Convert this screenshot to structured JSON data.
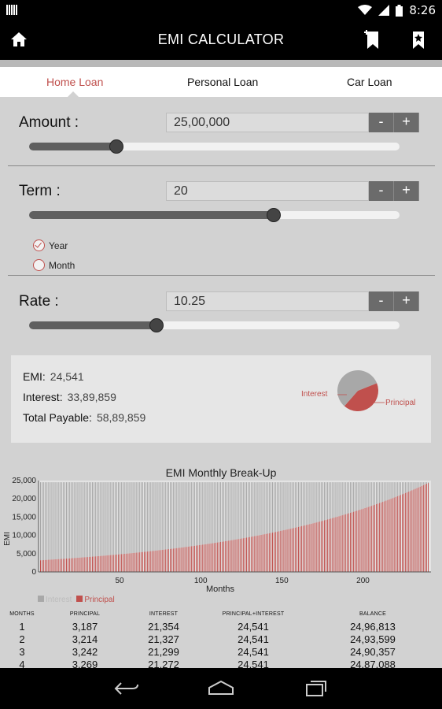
{
  "status": {
    "time": "8:26",
    "left_icon": "sim-icon",
    "icons": [
      "wifi-icon",
      "signal-icon",
      "battery-icon"
    ]
  },
  "appbar": {
    "title": "EMI CALCULATOR",
    "home_icon": "home-icon",
    "bookmark_add_icon": "bookmark-add-icon",
    "bookmark_icon": "bookmark-star-icon"
  },
  "tabs": [
    {
      "label": "Home Loan",
      "active": true
    },
    {
      "label": "Personal Loan",
      "active": false
    },
    {
      "label": "Car Loan",
      "active": false
    }
  ],
  "amount": {
    "label": "Amount :",
    "value": "25,00,000",
    "minus": "-",
    "plus": "+",
    "slider_fraction": 0.235
  },
  "term": {
    "label": "Term :",
    "value": "20",
    "minus": "-",
    "plus": "+",
    "slider_fraction": 0.66,
    "options": [
      {
        "label": "Year",
        "checked": true
      },
      {
        "label": "Month",
        "checked": false
      }
    ]
  },
  "rate": {
    "label": "Rate :",
    "value": "10.25",
    "minus": "-",
    "plus": "+",
    "slider_fraction": 0.345
  },
  "summary": {
    "emi_label": "EMI:",
    "emi_value": "24,541",
    "interest_label": "Interest:",
    "interest_value": "33,89,859",
    "total_label": "Total Payable:",
    "total_value": "58,89,859",
    "pie": {
      "labels": [
        "Interest",
        "Principal"
      ],
      "values": [
        3389859,
        2500000
      ],
      "colors": [
        "#a8a8a8",
        "#c0504d"
      ]
    }
  },
  "colors": {
    "accent": "#c0504d",
    "interest": "#a8a8a8",
    "principal": "#c0504d"
  },
  "chart_data": {
    "type": "bar",
    "title": "EMI Monthly Break-Up",
    "xlabel": "Months",
    "ylabel": "EMI",
    "x_range": [
      1,
      240
    ],
    "ylim": [
      0,
      25000
    ],
    "yticks": [
      "0",
      "5,000",
      "10,000",
      "15,000",
      "20,000",
      "25,000"
    ],
    "xticks": [
      "50",
      "100",
      "150",
      "200"
    ],
    "xtick_values": [
      50,
      100,
      150,
      200
    ],
    "ytick_values": [
      0,
      5000,
      10000,
      15000,
      20000,
      25000
    ],
    "stacked": true,
    "emi": 24541,
    "series": [
      {
        "name": "Interest",
        "color": "#a8a8a8"
      },
      {
        "name": "Principal",
        "color": "#c0504d",
        "start": 3187,
        "end": 24331
      }
    ],
    "legend": "bottom-left",
    "grid": false
  },
  "table": {
    "headers": [
      "MONTHS",
      "PRINCIPAL",
      "INTEREST",
      "PRINCIPAL+INTEREST",
      "BALANCE"
    ],
    "rows": [
      [
        "1",
        "3,187",
        "21,354",
        "24,541",
        "24,96,813"
      ],
      [
        "2",
        "3,214",
        "21,327",
        "24,541",
        "24,93,599"
      ],
      [
        "3",
        "3,242",
        "21,299",
        "24,541",
        "24,90,357"
      ],
      [
        "4",
        "3,269",
        "21,272",
        "24,541",
        "24,87,088"
      ]
    ]
  },
  "nav": {
    "icons": [
      "back-icon",
      "home-outline-icon",
      "recents-icon"
    ]
  }
}
